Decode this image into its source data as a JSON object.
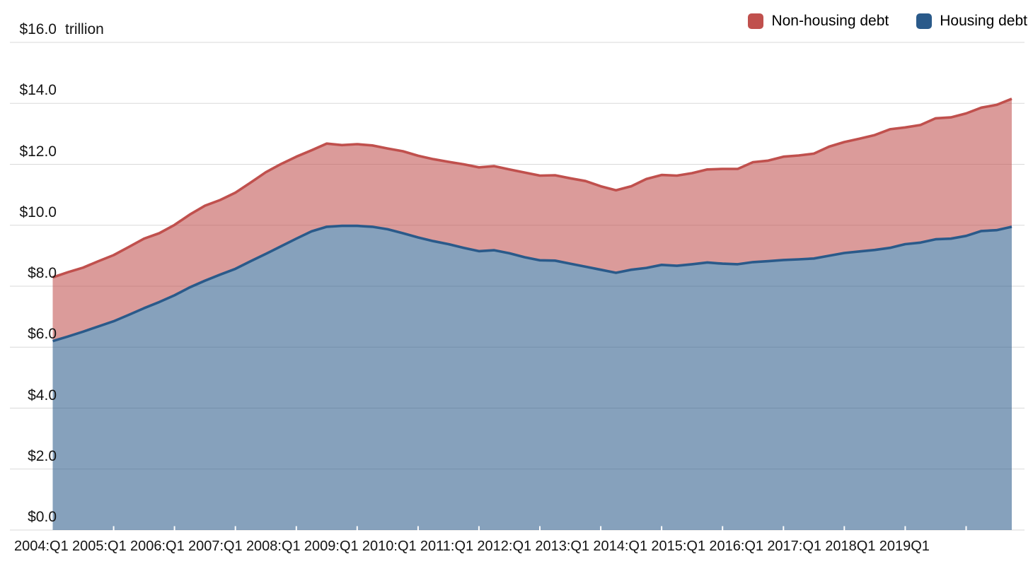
{
  "legend": [
    {
      "label": "Non-housing debt",
      "color": "#c0504d"
    },
    {
      "label": "Housing debt",
      "color": "#2a5a8a"
    }
  ],
  "chart_data": {
    "type": "area",
    "stacked": true,
    "y_axis_unit": "trillion",
    "ylim": [
      0,
      16
    ],
    "grid": "horizontal",
    "y_ticks": [
      "$0.0",
      "$2.0",
      "$4.0",
      "$6.0",
      "$8.0",
      "$10.0",
      "$12.0",
      "$14.0",
      "$16.0"
    ],
    "x_tick_labels": [
      "2004:Q1",
      "2005:Q1",
      "2006:Q1",
      "2007:Q1",
      "2008:Q1",
      "2009:Q1",
      "2010:Q1",
      "2011:Q1",
      "2012:Q1",
      "2013:Q1",
      "2014:Q1",
      "2015:Q1",
      "2016:Q1",
      "2017:Q1",
      "2018Q1",
      "2019Q1"
    ],
    "x": [
      "2004:Q1",
      "2004:Q2",
      "2004:Q3",
      "2004:Q4",
      "2005:Q1",
      "2005:Q2",
      "2005:Q3",
      "2005:Q4",
      "2006:Q1",
      "2006:Q2",
      "2006:Q3",
      "2006:Q4",
      "2007:Q1",
      "2007:Q2",
      "2007:Q3",
      "2007:Q4",
      "2008:Q1",
      "2008:Q2",
      "2008:Q3",
      "2008:Q4",
      "2009:Q1",
      "2009:Q2",
      "2009:Q3",
      "2009:Q4",
      "2010:Q1",
      "2010:Q2",
      "2010:Q3",
      "2010:Q4",
      "2011:Q1",
      "2011:Q2",
      "2011:Q3",
      "2011:Q4",
      "2012:Q1",
      "2012:Q2",
      "2012:Q3",
      "2012:Q4",
      "2013:Q1",
      "2013:Q2",
      "2013:Q3",
      "2013:Q4",
      "2014:Q1",
      "2014:Q2",
      "2014:Q3",
      "2014:Q4",
      "2015:Q1",
      "2015:Q2",
      "2015:Q3",
      "2015:Q4",
      "2016:Q1",
      "2016:Q2",
      "2016:Q3",
      "2016:Q4",
      "2017:Q1",
      "2017:Q2",
      "2017:Q3",
      "2017:Q4",
      "2018:Q1",
      "2018:Q2",
      "2018:Q3",
      "2018:Q4",
      "2019:Q1",
      "2019:Q2",
      "2019:Q3",
      "2019:Q4"
    ],
    "series": [
      {
        "name": "Housing debt",
        "color": "#2a5a8a",
        "fill_opacity": 0.57,
        "values": [
          6.2,
          6.35,
          6.51,
          6.68,
          6.85,
          7.06,
          7.28,
          7.48,
          7.7,
          7.96,
          8.18,
          8.38,
          8.57,
          8.82,
          9.06,
          9.31,
          9.56,
          9.8,
          9.95,
          9.98,
          9.98,
          9.95,
          9.87,
          9.74,
          9.6,
          9.48,
          9.38,
          9.26,
          9.15,
          9.18,
          9.08,
          8.95,
          8.85,
          8.84,
          8.74,
          8.64,
          8.54,
          8.44,
          8.54,
          8.6,
          8.7,
          8.67,
          8.72,
          8.78,
          8.74,
          8.72,
          8.79,
          8.82,
          8.86,
          8.88,
          8.91,
          9.0,
          9.09,
          9.14,
          9.19,
          9.26,
          9.38,
          9.43,
          9.54,
          9.56,
          9.65,
          9.81,
          9.84,
          9.95
        ]
      },
      {
        "name": "Non-housing debt",
        "color": "#c0504d",
        "fill_opacity": 0.57,
        "values": [
          2.09,
          2.11,
          2.1,
          2.14,
          2.17,
          2.23,
          2.28,
          2.26,
          2.31,
          2.39,
          2.46,
          2.45,
          2.5,
          2.58,
          2.68,
          2.7,
          2.69,
          2.66,
          2.73,
          2.65,
          2.68,
          2.67,
          2.65,
          2.69,
          2.68,
          2.69,
          2.7,
          2.74,
          2.75,
          2.76,
          2.75,
          2.78,
          2.78,
          2.8,
          2.8,
          2.81,
          2.74,
          2.71,
          2.74,
          2.92,
          2.95,
          2.96,
          2.99,
          3.05,
          3.11,
          3.13,
          3.28,
          3.3,
          3.39,
          3.41,
          3.44,
          3.58,
          3.64,
          3.7,
          3.77,
          3.89,
          3.83,
          3.86,
          3.97,
          3.98,
          4.02,
          4.05,
          4.11,
          4.2
        ]
      }
    ],
    "totals": [
      8.29,
      8.46,
      8.61,
      8.82,
      9.02,
      9.29,
      9.56,
      9.74,
      10.01,
      10.35,
      10.64,
      10.83,
      11.07,
      11.4,
      11.74,
      12.01,
      12.25,
      12.46,
      12.68,
      12.63,
      12.66,
      12.62,
      12.52,
      12.43,
      12.28,
      12.17,
      12.08,
      12.0,
      11.9,
      11.94,
      11.83,
      11.73,
      11.63,
      11.64,
      11.54,
      11.45,
      11.28,
      11.15,
      11.28,
      11.52,
      11.65,
      11.63,
      11.71,
      11.83,
      11.85,
      11.85,
      12.07,
      12.12,
      12.25,
      12.29,
      12.35,
      12.58,
      12.73,
      12.84,
      12.96,
      13.15,
      13.21,
      13.29,
      13.51,
      13.54,
      13.67,
      13.86,
      13.95,
      14.15
    ]
  }
}
